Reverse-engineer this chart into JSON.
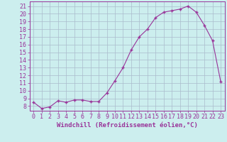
{
  "x": [
    0,
    1,
    2,
    3,
    4,
    5,
    6,
    7,
    8,
    9,
    10,
    11,
    12,
    13,
    14,
    15,
    16,
    17,
    18,
    19,
    20,
    21,
    22,
    23
  ],
  "y": [
    8.5,
    7.7,
    7.9,
    8.7,
    8.5,
    8.8,
    8.8,
    8.6,
    8.6,
    9.7,
    11.3,
    13.0,
    15.3,
    17.0,
    18.0,
    19.5,
    20.2,
    20.4,
    20.6,
    21.0,
    20.2,
    18.5,
    16.5,
    11.2
  ],
  "line_color": "#993399",
  "marker": "+",
  "marker_size": 3.5,
  "bg_color": "#cceeee",
  "grid_color": "#aabbcc",
  "xlabel": "Windchill (Refroidissement éolien,°C)",
  "ylabel_ticks": [
    8,
    9,
    10,
    11,
    12,
    13,
    14,
    15,
    16,
    17,
    18,
    19,
    20,
    21
  ],
  "ylim": [
    7.4,
    21.6
  ],
  "xlim": [
    -0.5,
    23.5
  ],
  "axis_color": "#993399",
  "tick_fontsize": 6,
  "xlabel_fontsize": 6.5
}
